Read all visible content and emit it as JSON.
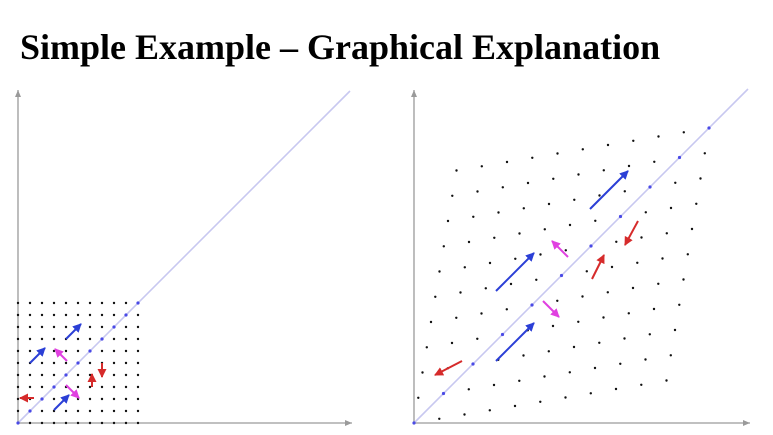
{
  "title": "Simple Example – Graphical Explanation",
  "colors": {
    "axis": "#9a9a9a",
    "diagonal": "#c8c8f0",
    "diagonal_point": "#4a4ae6",
    "grid_point": "#111111",
    "arrow_blue": "#2b3fd6",
    "arrow_magenta": "#e040e0",
    "arrow_red": "#d62b2b"
  }
}
